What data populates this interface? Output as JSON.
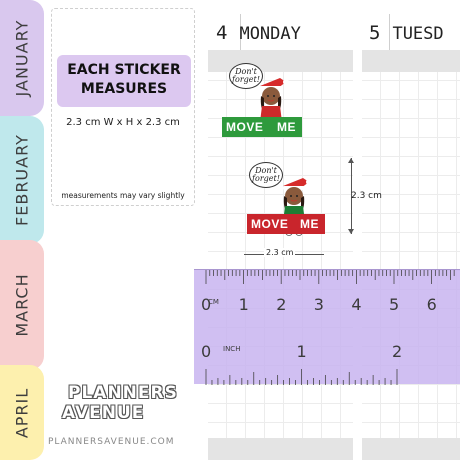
{
  "months": [
    "JANUARY",
    "FEBRUARY",
    "MARCH",
    "APRIL"
  ],
  "info": {
    "title_line1": "EACH STICKER",
    "title_line2": "MEASURES",
    "dimensions": "2.3 cm W  x  H x 2.3 cm",
    "note": "measurements may vary slightly"
  },
  "days": [
    {
      "number": "4",
      "name": "MONDAY"
    },
    {
      "number": "5",
      "name": "TUESD"
    }
  ],
  "stickers": [
    {
      "bubble_line1": "Don't",
      "bubble_line2": "forget!",
      "word_left": "MOVE",
      "word_right": "ME",
      "banner_color": "#2e9a3c"
    },
    {
      "bubble_line1": "Don't",
      "bubble_line2": "forget!",
      "word_left": "MOVE",
      "word_right": "ME",
      "banner_color": "#c9252c"
    }
  ],
  "measurements": {
    "height_label": "2.3 cm",
    "width_label": "2.3 cm"
  },
  "ruler": {
    "cm_unit": "CM",
    "cm_numbers": [
      "0",
      "1",
      "2",
      "3",
      "4",
      "5",
      "6"
    ],
    "inch_unit": "INCH",
    "inch_numbers": [
      "0",
      "1",
      "2"
    ]
  },
  "logo": {
    "line1": "PLANNERS",
    "line2": "AVENUE",
    "url": "PLANNERSAVENUE.COM"
  },
  "colors": {
    "lavender": "#d9c8ee",
    "aqua": "#bfe8ec",
    "pink": "#f7cfcf",
    "yellow": "#fdf0ae",
    "ruler": "#c8b4f0"
  }
}
